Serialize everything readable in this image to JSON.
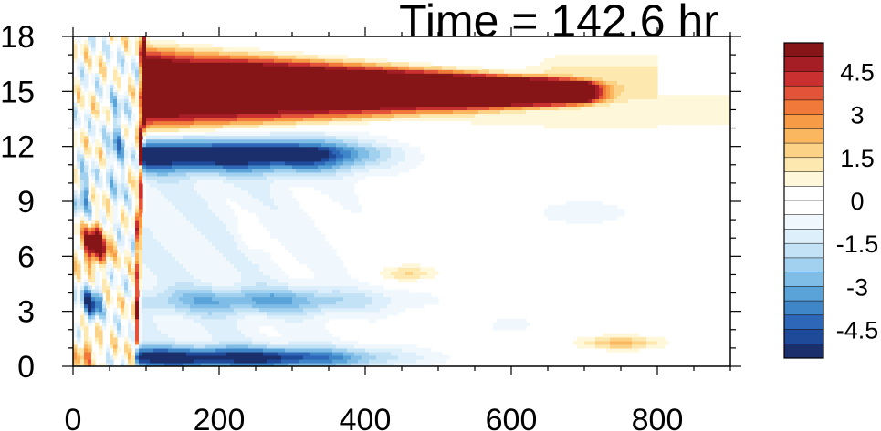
{
  "chart_data": {
    "type": "heatmap",
    "title": "Time = 142.6 hr",
    "xlabel": "",
    "ylabel": "",
    "xlim": [
      0,
      900
    ],
    "ylim": [
      0,
      18
    ],
    "x_ticks": [
      0,
      200,
      400,
      600,
      800
    ],
    "x_tick_labels": [
      "0",
      "200",
      "400",
      "600",
      "800"
    ],
    "y_ticks": [
      0,
      3,
      6,
      9,
      12,
      15,
      18
    ],
    "y_tick_labels": [
      "0",
      "3",
      "6",
      "9",
      "12",
      "15",
      "18"
    ],
    "grid": false,
    "legend": "colorbar-right",
    "colorbar": {
      "min": -5.5,
      "max": 5.5,
      "levels": [
        -5,
        -4.5,
        -4,
        -3.5,
        -3,
        -2.5,
        -2,
        -1.5,
        -1,
        -0.5,
        0,
        0.5,
        1,
        1.5,
        2,
        2.5,
        3,
        3.5,
        4,
        4.5,
        5
      ],
      "labels": [
        "4.5",
        "3",
        "1.5",
        "0",
        "-1.5",
        "-3",
        "-4.5"
      ],
      "label_values": [
        4.5,
        3,
        1.5,
        0,
        -1.5,
        -3,
        -4.5
      ],
      "colors": [
        "#1a2f6b",
        "#1f4a9a",
        "#2e66b8",
        "#3f86c9",
        "#5aa3d8",
        "#7fbde6",
        "#a2d1ef",
        "#c3e2f5",
        "#ddeffa",
        "#f0f8fd",
        "#ffffff",
        "#ffffff",
        "#fff7da",
        "#fde9b0",
        "#fcd386",
        "#fbb760",
        "#f79b46",
        "#f1793a",
        "#e2533a",
        "#c9302f",
        "#a51d25",
        "#861517"
      ]
    },
    "features": [
      {
        "name": "upper-warm-jet",
        "x_range": [
          92,
          700
        ],
        "y_center": 15.2,
        "peak_value": 5.5
      },
      {
        "name": "upper-warm-tail",
        "x_range": [
          600,
          800
        ],
        "y_center": 15.8,
        "peak_value": 1.0
      },
      {
        "name": "cold-band-below-jet",
        "x_range": [
          95,
          420
        ],
        "y_center": 11.6,
        "peak_value": -5.0
      },
      {
        "name": "near-surface-cold-band",
        "x_range": [
          85,
          560
        ],
        "y_center": 0.5,
        "peak_value": -4.5
      },
      {
        "name": "front-edge",
        "x_range": [
          80,
          100
        ],
        "y_range": [
          0,
          18
        ]
      },
      {
        "name": "left-warm-blob",
        "x_center": 30,
        "y_center": 6.6,
        "peak_value": 5.0
      },
      {
        "name": "left-cold-blob",
        "x_center": 25,
        "y_center": 3.5,
        "peak_value": -3.5
      },
      {
        "name": "mid-warm-patch",
        "x_center": 460,
        "y_center": 5.1,
        "peak_value": 1.5
      },
      {
        "name": "lower-right-warm-patch",
        "x_center": 750,
        "y_center": 1.3,
        "peak_value": 2.0
      }
    ]
  }
}
